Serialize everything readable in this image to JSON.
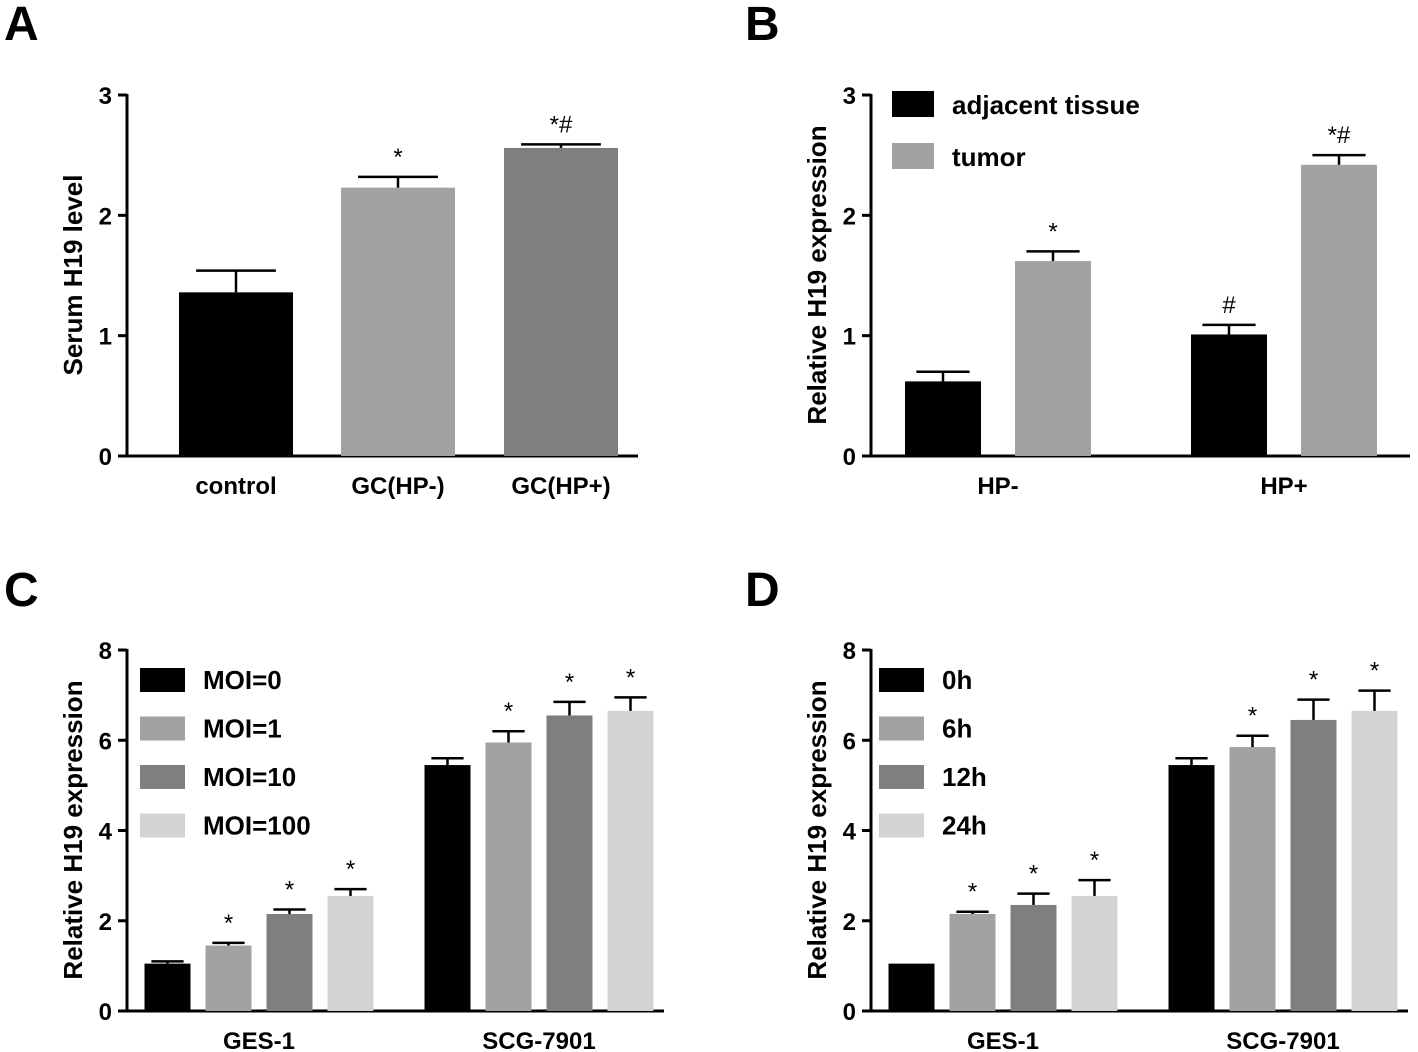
{
  "colors": {
    "black": "#000000",
    "light_gray": "#a2a2a2",
    "dark_gray": "#7f7f7f",
    "pale_gray": "#d3d3d3"
  },
  "chart_data": [
    {
      "panel": "A",
      "type": "bar",
      "ylabel": "Serum H19 level",
      "ylim": [
        0,
        3
      ],
      "yticks": [
        "0",
        "1",
        "2",
        "3"
      ],
      "categories": [
        "control",
        "GC(HP-)",
        "GC(HP+)"
      ],
      "values": [
        1.36,
        2.23,
        2.56
      ],
      "errors": [
        0.18,
        0.09,
        0.03
      ],
      "annotations": [
        "",
        "*",
        "*#"
      ],
      "bar_colors": [
        "#000000",
        "#a2a2a2",
        "#7f7f7f"
      ],
      "legend": []
    },
    {
      "panel": "B",
      "type": "bar",
      "ylabel": "Relative H19 expression",
      "ylim": [
        0,
        3
      ],
      "yticks": [
        "0",
        "1",
        "2",
        "3"
      ],
      "categories": [
        "HP-",
        "HP+"
      ],
      "series": [
        {
          "name": "adjacent tissue",
          "color": "#000000",
          "values": [
            0.62,
            1.01
          ],
          "errors": [
            0.08,
            0.08
          ],
          "annotations": [
            "",
            "#"
          ]
        },
        {
          "name": "tumor",
          "color": "#a2a2a2",
          "values": [
            1.62,
            2.42
          ],
          "errors": [
            0.08,
            0.08
          ],
          "annotations": [
            "*",
            "*#"
          ]
        }
      ],
      "legend": [
        "adjacent tissue",
        "tumor"
      ],
      "legend_position": "top-left"
    },
    {
      "panel": "C",
      "type": "bar",
      "ylabel": "Relative H19 expression",
      "ylim": [
        0,
        8
      ],
      "yticks": [
        "0",
        "2",
        "4",
        "6",
        "8"
      ],
      "categories": [
        "GES-1",
        "SCG-7901"
      ],
      "series": [
        {
          "name": "MOI=0",
          "color": "#000000",
          "values": [
            1.05,
            5.45
          ],
          "errors": [
            0.05,
            0.15
          ],
          "annotations": [
            "",
            ""
          ]
        },
        {
          "name": "MOI=1",
          "color": "#a2a2a2",
          "values": [
            1.45,
            5.95
          ],
          "errors": [
            0.06,
            0.25
          ],
          "annotations": [
            "*",
            "*"
          ]
        },
        {
          "name": "MOI=10",
          "color": "#7f7f7f",
          "values": [
            2.15,
            6.55
          ],
          "errors": [
            0.1,
            0.3
          ],
          "annotations": [
            "*",
            "*"
          ]
        },
        {
          "name": "MOI=100",
          "color": "#d3d3d3",
          "values": [
            2.55,
            6.65
          ],
          "errors": [
            0.15,
            0.3
          ],
          "annotations": [
            "*",
            "*"
          ]
        }
      ],
      "legend": [
        "MOI=0",
        "MOI=1",
        "MOI=10",
        "MOI=100"
      ],
      "legend_position": "top-left"
    },
    {
      "panel": "D",
      "type": "bar",
      "ylabel": "Relative H19 expression",
      "ylim": [
        0,
        8
      ],
      "yticks": [
        "0",
        "2",
        "4",
        "6",
        "8"
      ],
      "categories": [
        "GES-1",
        "SCG-7901"
      ],
      "series": [
        {
          "name": "0h",
          "color": "#000000",
          "values": [
            1.05,
            5.45
          ],
          "errors": [
            0,
            0.15
          ],
          "annotations": [
            "",
            ""
          ]
        },
        {
          "name": "6h",
          "color": "#a2a2a2",
          "values": [
            2.15,
            5.85
          ],
          "errors": [
            0.05,
            0.25
          ],
          "annotations": [
            "*",
            "*"
          ]
        },
        {
          "name": "12h",
          "color": "#7f7f7f",
          "values": [
            2.35,
            6.45
          ],
          "errors": [
            0.25,
            0.45
          ],
          "annotations": [
            "*",
            "*"
          ]
        },
        {
          "name": "24h",
          "color": "#d3d3d3",
          "values": [
            2.55,
            6.65
          ],
          "errors": [
            0.35,
            0.45
          ],
          "annotations": [
            "*",
            "*"
          ]
        }
      ],
      "legend": [
        "0h",
        "6h",
        "12h",
        "24h"
      ],
      "legend_position": "top-left"
    }
  ]
}
